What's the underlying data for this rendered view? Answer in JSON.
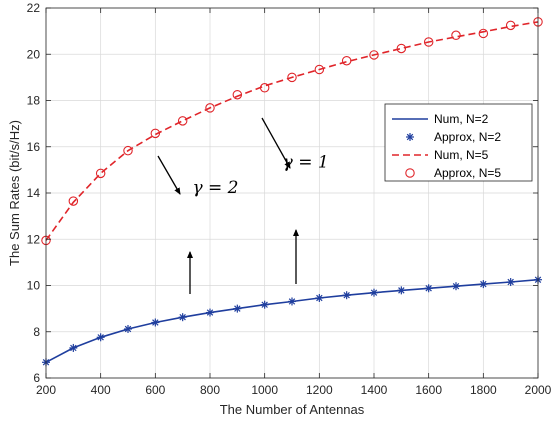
{
  "chart_data": {
    "type": "line",
    "xlabel": "The Number of Antennas",
    "ylabel": "The Sum Rates (bit/s/Hz)",
    "xlim": [
      200,
      2000
    ],
    "ylim": [
      6,
      22
    ],
    "xticks": [
      200,
      400,
      600,
      800,
      1000,
      1200,
      1400,
      1600,
      1800,
      2000
    ],
    "yticks": [
      6,
      8,
      10,
      12,
      14,
      16,
      18,
      20,
      22
    ],
    "grid": true,
    "legend_position": "right",
    "x": [
      200,
      300,
      400,
      500,
      600,
      700,
      800,
      900,
      1000,
      1100,
      1200,
      1300,
      1400,
      1500,
      1600,
      1700,
      1800,
      1900,
      2000
    ],
    "series": [
      {
        "name": "Num, N=2",
        "style": "solid",
        "color": "#1f3e9e",
        "values": [
          6.68,
          7.3,
          7.76,
          8.12,
          8.4,
          8.63,
          8.83,
          9.0,
          9.17,
          9.31,
          9.46,
          9.58,
          9.69,
          9.79,
          9.88,
          9.97,
          10.06,
          10.15,
          10.25
        ]
      },
      {
        "name": "Approx, N=2",
        "style": "asterisk",
        "color": "#1f3e9e",
        "values": [
          6.68,
          7.3,
          7.76,
          8.12,
          8.4,
          8.63,
          8.83,
          9.0,
          9.17,
          9.31,
          9.46,
          9.58,
          9.69,
          9.79,
          9.88,
          9.97,
          10.06,
          10.15,
          10.25
        ]
      },
      {
        "name": "Num, N=5",
        "style": "dashed",
        "color": "#e0252a",
        "values": [
          11.95,
          13.6,
          14.85,
          15.83,
          16.53,
          17.12,
          17.68,
          18.18,
          18.63,
          19.0,
          19.34,
          19.68,
          19.97,
          20.25,
          20.53,
          20.75,
          20.97,
          21.2,
          21.4
        ]
      },
      {
        "name": "Approx, N=5",
        "style": "circle",
        "color": "#e0252a",
        "values": [
          11.95,
          13.65,
          14.85,
          15.83,
          16.58,
          17.12,
          17.68,
          18.25,
          18.55,
          19.0,
          19.34,
          19.72,
          19.97,
          20.25,
          20.53,
          20.82,
          20.9,
          21.25,
          21.4
        ]
      }
    ],
    "annotations": [
      {
        "text": "γ = 2",
        "x": 820,
        "y": 14.0
      },
      {
        "text": "γ = 1",
        "x": 1150,
        "y": 15.1
      }
    ]
  }
}
